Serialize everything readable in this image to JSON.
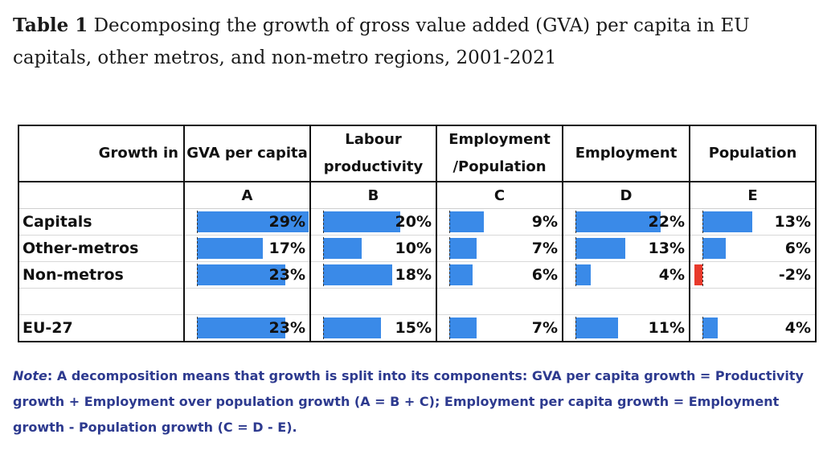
{
  "title": {
    "label": "Table 1",
    "text": "Decomposing the growth of gross value added (GVA) per capita in EU capitals, other metros, and non-metro regions, 2001-2021"
  },
  "table": {
    "corner_label": "Growth in",
    "columns": [
      {
        "header": "GVA per capita",
        "letter": "A"
      },
      {
        "header": "Labour productivity",
        "letter": "B"
      },
      {
        "header": "Employment /Population",
        "letter": "C"
      },
      {
        "header": "Employment",
        "letter": "D"
      },
      {
        "header": "Population",
        "letter": "E"
      }
    ],
    "rows": [
      {
        "label": "Capitals",
        "values": [
          29,
          20,
          9,
          22,
          13
        ],
        "display": [
          "29%",
          "20%",
          "9%",
          "22%",
          "13%"
        ]
      },
      {
        "label": "Other-metros",
        "values": [
          17,
          10,
          7,
          13,
          6
        ],
        "display": [
          "17%",
          "10%",
          "7%",
          "13%",
          "6%"
        ]
      },
      {
        "label": "Non-metros",
        "values": [
          23,
          18,
          6,
          4,
          -2
        ],
        "display": [
          "23%",
          "18%",
          "6%",
          "4%",
          "-2%"
        ]
      },
      {
        "label": "",
        "values": [],
        "display": []
      },
      {
        "label": "EU-27",
        "values": [
          23,
          15,
          7,
          11,
          4
        ],
        "display": [
          "23%",
          "15%",
          "7%",
          "11%",
          "4%"
        ]
      }
    ],
    "bar_colors": {
      "positive": "#3a8ae8",
      "negative": "#e8392b"
    }
  },
  "note": {
    "prefix": "Note",
    "text": ": A decomposition means that growth is split into its components:  GVA per capita growth = Productivity growth + Employment over population growth (A = B + C); Employment per capita growth = Employment growth - Population growth (C = D - E)."
  }
}
